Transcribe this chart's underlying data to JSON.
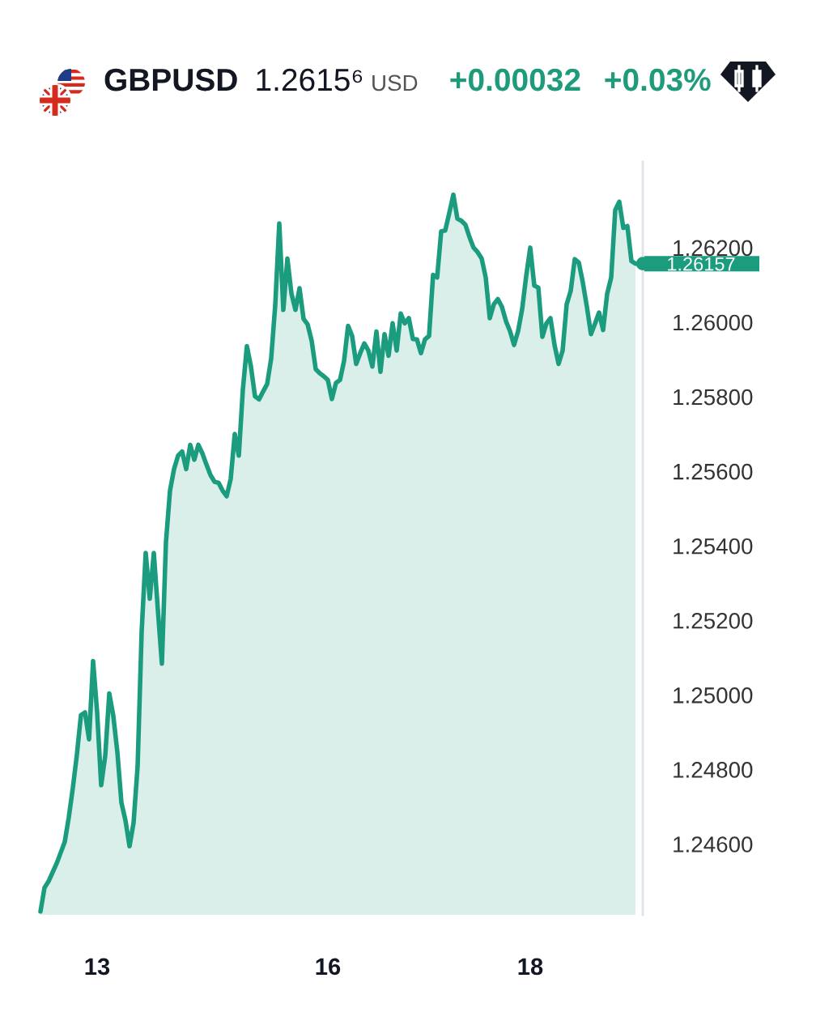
{
  "chart_data": {
    "type": "area",
    "title": "GBPUSD",
    "subtitle": "1.2615⁶",
    "annotations": [
      "USD",
      "+0.00032",
      "+0.03%",
      "1.26157"
    ],
    "categories": [
      null,
      null,
      null,
      null,
      null,
      null,
      null,
      null,
      null,
      null,
      null,
      null,
      null,
      null,
      "13",
      null,
      null,
      null,
      null,
      null,
      null,
      null,
      null,
      null,
      null,
      null,
      null,
      null,
      null,
      null,
      null,
      null,
      null,
      null,
      null,
      null,
      null,
      null,
      null,
      null,
      null,
      null,
      null,
      null,
      null,
      null,
      null,
      null,
      null,
      null,
      null,
      null,
      null,
      null,
      null,
      null,
      null,
      null,
      null,
      null,
      null,
      null,
      null,
      null,
      null,
      null,
      null,
      null,
      null,
      null,
      null,
      "16",
      null,
      null,
      null,
      null,
      null,
      null,
      null,
      null,
      null,
      null,
      null,
      null,
      null,
      null,
      null,
      null,
      null,
      null,
      null,
      null,
      null,
      null,
      null,
      null,
      null,
      null,
      null,
      null,
      null,
      null,
      null,
      null,
      null,
      null,
      null,
      null,
      null,
      null,
      null,
      null,
      null,
      null,
      null,
      null,
      null,
      null,
      null,
      null,
      null,
      "18",
      null,
      null,
      null,
      null,
      null,
      null,
      null,
      null,
      null,
      null,
      null,
      null,
      null,
      null,
      null,
      null,
      null,
      null,
      null,
      null,
      null,
      null,
      null,
      null,
      null,
      null
    ],
    "series": [
      {
        "color": "#1b9c7f",
        "values": [
          1.24419,
          1.24483,
          1.245,
          1.24524,
          1.24548,
          1.24577,
          1.24606,
          1.24672,
          1.24751,
          1.2484,
          1.24946,
          1.24953,
          1.24881,
          1.25091,
          1.24953,
          1.24758,
          1.24837,
          1.25004,
          1.24943,
          1.24846,
          1.24711,
          1.24663,
          1.24594,
          1.24657,
          1.24809,
          1.2517,
          1.25381,
          1.25258,
          1.25381,
          1.25229,
          1.25084,
          1.2541,
          1.25548,
          1.25606,
          1.25642,
          1.25653,
          1.25606,
          1.25671,
          1.25631,
          1.25671,
          1.25648,
          1.25618,
          1.2559,
          1.25572,
          1.25569,
          1.25548,
          1.25533,
          1.2558,
          1.257,
          1.25642,
          1.25819,
          1.25936,
          1.25881,
          1.25801,
          1.25793,
          1.25814,
          1.25834,
          1.25903,
          1.26046,
          1.26265,
          1.26033,
          1.26171,
          1.26077,
          1.26033,
          1.26091,
          1.26009,
          1.25994,
          1.2595,
          1.25874,
          1.25863,
          1.25855,
          1.25845,
          1.25794,
          1.25837,
          1.25845,
          1.25896,
          1.2599,
          1.25963,
          1.25888,
          1.25917,
          1.25943,
          1.25924,
          1.25881,
          1.25975,
          1.25867,
          1.25968,
          1.2591,
          1.25997,
          1.25924,
          1.26023,
          1.25997,
          1.26011,
          1.25955,
          1.25954,
          1.25917,
          1.25954,
          1.25963,
          1.26127,
          1.2612,
          1.26244,
          1.26246,
          1.26293,
          1.26342,
          1.26278,
          1.26272,
          1.26261,
          1.26228,
          1.262,
          1.26188,
          1.26171,
          1.2612,
          1.26011,
          1.26048,
          1.26062,
          1.26041,
          1.26003,
          1.25976,
          1.25939,
          1.25976,
          1.26035,
          1.26124,
          1.262,
          1.26098,
          1.26093,
          1.25961,
          1.25997,
          1.26011,
          1.25939,
          1.25888,
          1.25924,
          1.26048,
          1.26084,
          1.26169,
          1.2616,
          1.26106,
          1.26041,
          1.25968,
          1.25996,
          1.26026,
          1.25979,
          1.26076,
          1.2612,
          1.26301,
          1.26323,
          1.26253,
          1.26258,
          1.26164,
          1.26157
        ]
      }
    ],
    "ylim": [
      1.2441,
      1.2643
    ],
    "yticks": [
      {
        "value": 1.246,
        "label": "1.24600"
      },
      {
        "value": 1.248,
        "label": "1.24800"
      },
      {
        "value": 1.25,
        "label": "1.25000"
      },
      {
        "value": 1.252,
        "label": "1.25200"
      },
      {
        "value": 1.254,
        "label": "1.25400"
      },
      {
        "value": 1.256,
        "label": "1.25600"
      },
      {
        "value": 1.258,
        "label": "1.25800"
      },
      {
        "value": 1.26,
        "label": "1.26000"
      },
      {
        "value": 1.262,
        "label": "1.26200"
      }
    ]
  }
}
